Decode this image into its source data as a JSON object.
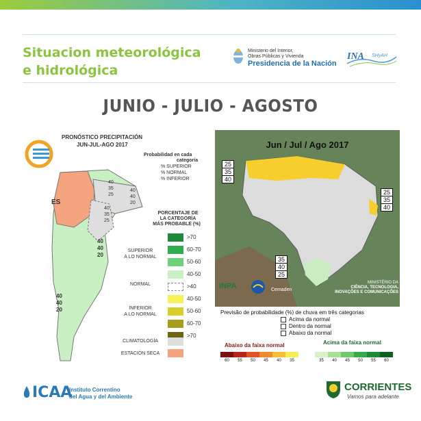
{
  "header": {
    "title_line1": "Situacion meteorológica",
    "title_line2": "e hidrológica",
    "ministry_line1": "Ministerio del Interior,",
    "ministry_line2": "Obras Públicas y Vivienda",
    "ministry_line3": "Presidencia de la Nación",
    "ina_logo": "INA",
    "ina_sub": "SHyAH",
    "accent_green": "#8cc43f",
    "accent_blue": "#1e6fb5"
  },
  "season_title": "JUNIO - JULIO - AGOSTO",
  "left_map": {
    "title_line1": "PRONÓSTICO PRECIPITACIÓN",
    "title_line2": "JUN-JUL-AGO 2017",
    "prob_title_line1": "Probabilidad en cada",
    "prob_title_line2": "categoría",
    "prob_items": [
      "% SUPERIOR",
      "% NORMAL",
      "% INFERIOR"
    ],
    "pct_title_line1": "PORCENTAJE DE",
    "pct_title_line2": "LA CATEGORÍA",
    "pct_title_line3": "MÁS PROBABLE (%)",
    "region_es_label": "ES",
    "triplets": [
      {
        "a": "40",
        "b": "35",
        "c": "25"
      },
      {
        "a": "40",
        "b": "40",
        "c": "20"
      },
      {
        "a": "40",
        "b": "35",
        "c": "25"
      },
      {
        "a": "40",
        "b": "40",
        "c": "20"
      },
      {
        "a": "40",
        "b": "40",
        "c": "20"
      }
    ],
    "legend": [
      {
        "color": "#1e8a3a",
        "label": ">70"
      },
      {
        "color": "#2fae4f",
        "label": "60-70"
      },
      {
        "color": "#6fd27a",
        "label": "50-60"
      },
      {
        "color": "#c9f0c3",
        "label": "40-50"
      },
      {
        "color": "dashed",
        "label": ">40"
      },
      {
        "color": "#f7f25a",
        "label": "40-50"
      },
      {
        "color": "#d8cf2c",
        "label": "50-60"
      },
      {
        "color": "#a89c1c",
        "label": "60-70"
      },
      {
        "color": "#6e6512",
        "label": ">70"
      },
      {
        "color": "#dedede",
        "label": ""
      },
      {
        "color": "#f4a57f",
        "label": ""
      }
    ],
    "cat_superior_line1": "SUPERIOR",
    "cat_superior_line2": "A LO NORMAL",
    "cat_normal": "NORMAL",
    "cat_inferior_line1": "INFERIOR",
    "cat_inferior_line2": "A LO NORMAL",
    "cat_climatologia": "CLIMATOLOGÍA",
    "cat_estacion_seca": "ESTACIÓN SECA"
  },
  "right_map": {
    "title": "Jun / Jul / Ago 2017",
    "boxes": [
      {
        "a": "25",
        "b": "35",
        "c": "40"
      },
      {
        "a": "25",
        "b": "35",
        "c": "40"
      },
      {
        "a": "35",
        "b": "40",
        "c": "25"
      }
    ],
    "inpa_logo": "INPA",
    "cemaden_logo": "Cemaden",
    "ministry_line1": "MINISTÉRIO DA",
    "ministry_line2": "CIÊNCIA, TECNOLOGIA,",
    "ministry_line3": "INOVAÇÕES E COMUNICAÇÕES",
    "legend_title": "Previsão de probabilidade (%) de chuva em três categorias",
    "legend_items": [
      "Acima da normal",
      "Dentro da normal",
      "Abaixo da normal"
    ],
    "below_label": "Abaixo da faixa normal",
    "above_label": "Acima da faixa normal",
    "below_scale": [
      {
        "v": "60",
        "color": "#7a1010"
      },
      {
        "v": "55",
        "color": "#b5271a"
      },
      {
        "v": "50",
        "color": "#e0532a"
      },
      {
        "v": "45",
        "color": "#f08a2e"
      },
      {
        "v": "40",
        "color": "#f6bf35"
      },
      {
        "v": "35",
        "color": "#f7ee52"
      }
    ],
    "above_scale": [
      {
        "v": "35",
        "color": "#d7f2c9"
      },
      {
        "v": "40",
        "color": "#a9e096"
      },
      {
        "v": "45",
        "color": "#6fcb6a"
      },
      {
        "v": "50",
        "color": "#36a94a"
      },
      {
        "v": "55",
        "color": "#1e8a36"
      },
      {
        "v": "60",
        "color": "#0f5e24"
      }
    ]
  },
  "footer": {
    "icaa_logo": "ICAA",
    "icaa_line1": "Instituto Correntino",
    "icaa_line2": "del Agua y del Ambiente",
    "corrientes_name": "CORRIENTES",
    "corrientes_slogan": "Vamos para adelante"
  }
}
